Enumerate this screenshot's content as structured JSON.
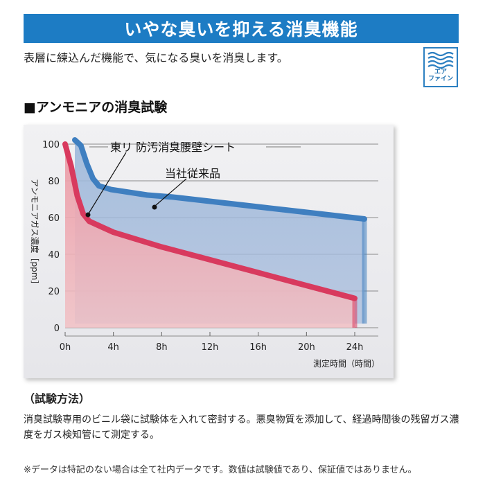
{
  "banner": {
    "title": "いやな臭いを抑える消臭機能"
  },
  "intro": {
    "text": "表層に練込んだ機能で、気になる臭いを消臭します。"
  },
  "badge": {
    "icon": "air-wave-icon",
    "line1": "エア",
    "line2": "ファイン"
  },
  "section": {
    "title": "■アンモニアの消臭試験"
  },
  "chart_data": {
    "type": "area",
    "ylabel": "アンモニアガス濃度［ppm］",
    "xlabel": "測定時間（時間）",
    "x_ticks": [
      "0h",
      "4h",
      "8h",
      "12h",
      "16h",
      "20h",
      "24h"
    ],
    "y_ticks": [
      "0",
      "20",
      "40",
      "60",
      "80",
      "100"
    ],
    "xlim": [
      0,
      24
    ],
    "ylim": [
      0,
      100
    ],
    "grid": true,
    "series": [
      {
        "name": "当社従来品",
        "color": "#3f7fc0",
        "x": [
          0,
          0.5,
          1,
          1.5,
          2,
          3,
          4,
          6,
          8,
          12,
          16,
          20,
          24
        ],
        "y": [
          100,
          97,
          87,
          79,
          75,
          73,
          72,
          70,
          69,
          66,
          63,
          60,
          57
        ]
      },
      {
        "name": "東リ 防汚消臭腰壁シート",
        "color": "#d83a5e",
        "x": [
          0,
          0.5,
          1,
          1.5,
          2,
          3,
          4,
          6,
          8,
          12,
          16,
          20,
          24
        ],
        "y": [
          100,
          88,
          72,
          62,
          58,
          55,
          52,
          48,
          44,
          37,
          30,
          23,
          16
        ]
      }
    ]
  },
  "method": {
    "title": "（試験方法）",
    "text": "消臭試験専用のビニル袋に試験体を入れて密封する。悪臭物質を添加して、経過時間後の残留ガス濃度をガス検知管にて測定する。"
  },
  "note": {
    "text": "※データは特記のない場合は全て社内データです。数値は試験値であり、保証値ではありません。"
  }
}
